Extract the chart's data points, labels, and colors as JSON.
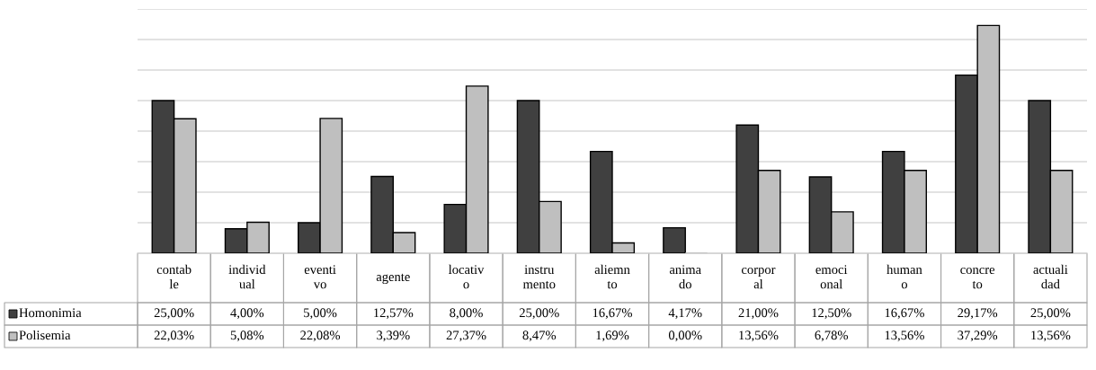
{
  "chart_data": {
    "type": "bar",
    "categories": [
      "contab\nle",
      "individ\nual",
      "eventi\nvo",
      "agente",
      "locativ\no",
      "instru\nmento",
      "aliemn\nto",
      "anima\ndo",
      "corpor\nal",
      "emoci\nonal",
      "human\no",
      "concre\nto",
      "actuali\ndad"
    ],
    "series": [
      {
        "name": "Homonimia",
        "color": "#404040",
        "values": [
          25.0,
          4.0,
          5.0,
          12.57,
          8.0,
          25.0,
          16.67,
          4.17,
          21.0,
          12.5,
          16.67,
          29.17,
          25.0
        ],
        "value_labels": [
          "25,00%",
          "4,00%",
          "5,00%",
          "12,57%",
          "8,00%",
          "25,00%",
          "16,67%",
          "4,17%",
          "21,00%",
          "12,50%",
          "16,67%",
          "29,17%",
          "25,00%"
        ]
      },
      {
        "name": "Polisemia",
        "color": "#bfbfbf",
        "values": [
          22.03,
          5.08,
          22.08,
          3.39,
          27.37,
          8.47,
          1.69,
          0.0,
          13.56,
          6.78,
          13.56,
          37.29,
          13.56
        ],
        "value_labels": [
          "22,03%",
          "5,08%",
          "22,08%",
          "3,39%",
          "27,37%",
          "8,47%",
          "1,69%",
          "0,00%",
          "13,56%",
          "6,78%",
          "13,56%",
          "37,29%",
          "13,56%"
        ]
      }
    ],
    "ylim": [
      0,
      40
    ],
    "yticks": [
      {
        "value": 0,
        "label": null
      },
      {
        "value": 5,
        "label": null
      },
      {
        "value": 10,
        "label": null
      },
      {
        "value": 15,
        "label": null
      },
      {
        "value": 20,
        "label": null
      },
      {
        "value": 25,
        "label": null
      },
      {
        "value": 30,
        "label": null
      },
      {
        "value": 35,
        "label": null
      },
      {
        "value": 40,
        "label": null
      }
    ],
    "grid": "y",
    "legend": "bottom left"
  }
}
